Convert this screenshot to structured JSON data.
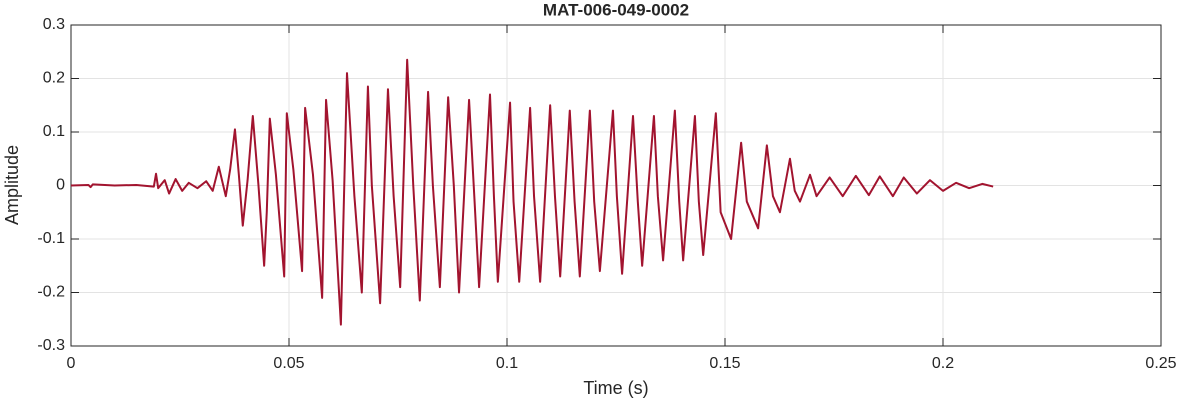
{
  "chart_data": {
    "type": "line",
    "title": "MAT-006-049-0002",
    "xlabel": "Time (s)",
    "ylabel": "Amplitude",
    "color": "#a2142f",
    "grid": true,
    "xlim": [
      0,
      0.25
    ],
    "xticks": [
      0,
      0.05,
      0.1,
      0.15,
      0.2,
      0.25
    ],
    "ylim": [
      -0.3,
      0.3
    ],
    "yticks": [
      -0.3,
      -0.2,
      -0.1,
      0,
      0.1,
      0.2,
      0.3
    ],
    "x": [
      0,
      0.004,
      0.0045,
      0.005,
      0.01,
      0.015,
      0.019,
      0.0195,
      0.02,
      0.0215,
      0.0225,
      0.024,
      0.0255,
      0.027,
      0.029,
      0.031,
      0.0325,
      0.0339,
      0.0355,
      0.0365,
      0.0376,
      0.0385,
      0.0394,
      0.0405,
      0.0417,
      0.043,
      0.0443,
      0.0449,
      0.0456,
      0.047,
      0.0489,
      0.0495,
      0.051,
      0.053,
      0.0537,
      0.0555,
      0.0576,
      0.0585,
      0.06,
      0.0619,
      0.0633,
      0.065,
      0.0667,
      0.0681,
      0.069,
      0.0709,
      0.0727,
      0.074,
      0.0755,
      0.0771,
      0.0785,
      0.08,
      0.0819,
      0.083,
      0.0846,
      0.0865,
      0.0878,
      0.089,
      0.0913,
      0.0925,
      0.0936,
      0.0961,
      0.097,
      0.0979,
      0.1007,
      0.1015,
      0.1028,
      0.1053,
      0.1062,
      0.1076,
      0.1099,
      0.111,
      0.1122,
      0.1144,
      0.1155,
      0.1167,
      0.119,
      0.12,
      0.1213,
      0.1243,
      0.1252,
      0.1264,
      0.1289,
      0.13,
      0.131,
      0.1337,
      0.1346,
      0.1358,
      0.1385,
      0.1395,
      0.1404,
      0.1431,
      0.144,
      0.145,
      0.1479,
      0.149,
      0.1514,
      0.1537,
      0.155,
      0.1576,
      0.1596,
      0.161,
      0.1626,
      0.1649,
      0.166,
      0.1672,
      0.1695,
      0.171,
      0.174,
      0.177,
      0.18,
      0.183,
      0.1855,
      0.1885,
      0.191,
      0.194,
      0.197,
      0.2,
      0.203,
      0.206,
      0.209,
      0.2115
    ],
    "values": [
      0,
      0.001,
      -0.003,
      0.002,
      0,
      0.001,
      -0.002,
      0.022,
      -0.005,
      0.01,
      -0.015,
      0.012,
      -0.01,
      0.005,
      -0.005,
      0.008,
      -0.01,
      0.035,
      -0.02,
      0.03,
      0.105,
      0.02,
      -0.075,
      0.01,
      0.13,
      0,
      -0.15,
      -0.05,
      0.125,
      0.02,
      -0.17,
      0.135,
      0.03,
      -0.16,
      0.145,
      0.02,
      -0.21,
      0.16,
      0.01,
      -0.26,
      0.21,
      -0.02,
      -0.2,
      0.185,
      0,
      -0.22,
      0.18,
      -0.02,
      -0.19,
      0.235,
      0,
      -0.215,
      0.175,
      0,
      -0.19,
      0.165,
      0,
      -0.2,
      0.16,
      -0.02,
      -0.19,
      0.17,
      -0.02,
      -0.18,
      0.155,
      -0.03,
      -0.18,
      0.145,
      -0.02,
      -0.18,
      0.15,
      -0.02,
      -0.17,
      0.14,
      -0.03,
      -0.17,
      0.14,
      -0.03,
      -0.16,
      0.14,
      -0.02,
      -0.165,
      0.13,
      -0.03,
      -0.15,
      0.13,
      -0.02,
      -0.14,
      0.14,
      -0.03,
      -0.14,
      0.13,
      -0.03,
      -0.13,
      0.135,
      -0.05,
      -0.1,
      0.08,
      -0.03,
      -0.08,
      0.075,
      -0.02,
      -0.05,
      0.05,
      -0.01,
      -0.03,
      0.02,
      -0.02,
      0.015,
      -0.02,
      0.018,
      -0.018,
      0.017,
      -0.02,
      0.015,
      -0.015,
      0.01,
      -0.01,
      0.005,
      -0.005,
      0.003,
      -0.002
    ]
  }
}
